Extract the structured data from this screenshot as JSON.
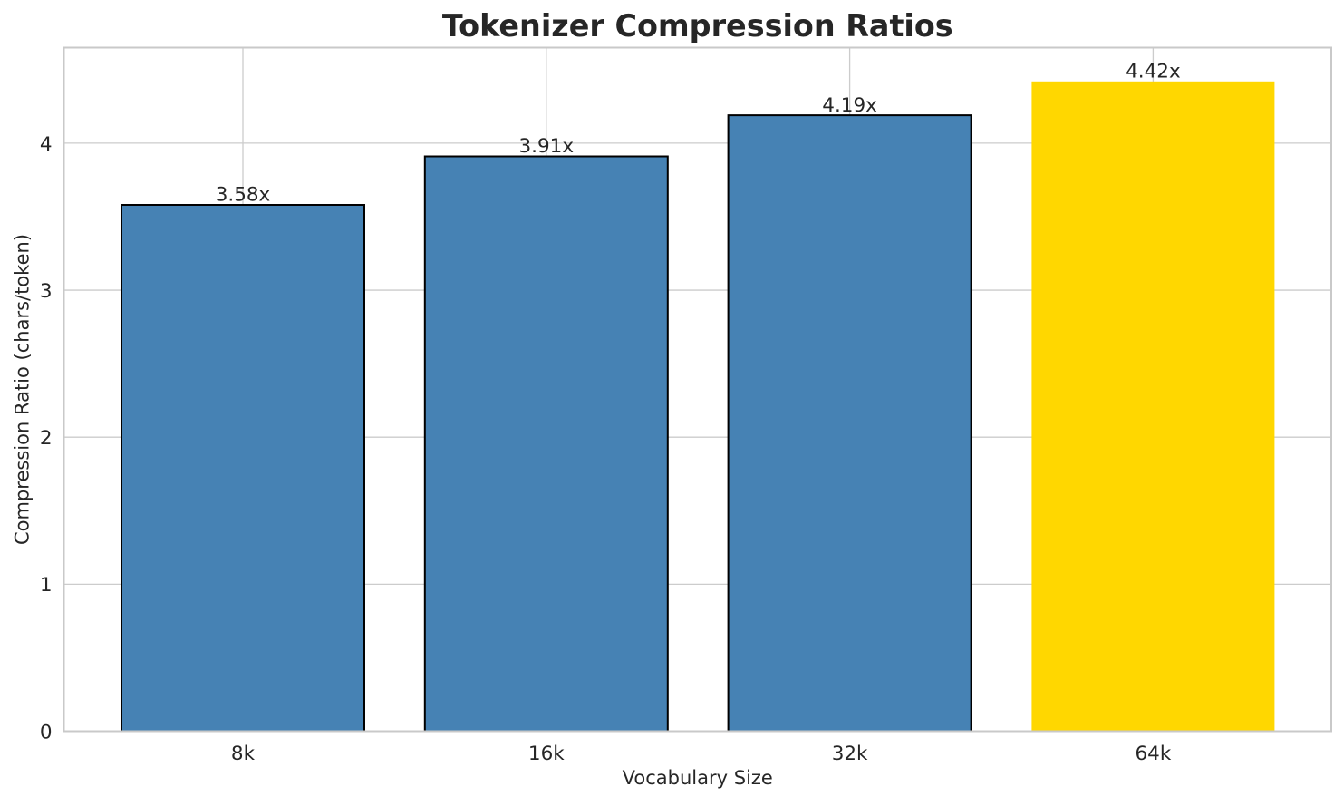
{
  "chart_data": {
    "type": "bar",
    "title": "Tokenizer Compression Ratios",
    "xlabel": "Vocabulary Size",
    "ylabel": "Compression Ratio (chars/token)",
    "categories": [
      "8k",
      "16k",
      "32k",
      "64k"
    ],
    "values": [
      3.58,
      3.91,
      4.19,
      4.42
    ],
    "bar_labels": [
      "3.58x",
      "3.91x",
      "4.19x",
      "4.42x"
    ],
    "yticks": [
      0,
      1,
      2,
      3,
      4
    ],
    "ylim": [
      0,
      4.65
    ],
    "grid": "on",
    "legend": "none",
    "bar_colors": [
      "#4682b4",
      "#4682b4",
      "#4682b4",
      "#ffd700"
    ],
    "bar_edge_colors": [
      "#000000",
      "#000000",
      "#000000",
      "none"
    ],
    "highlight_category": "64k",
    "text_color": "#262626",
    "grid_color": "#cccccc",
    "spine_color": "#c9c9c9",
    "background_color": "#ffffff"
  }
}
